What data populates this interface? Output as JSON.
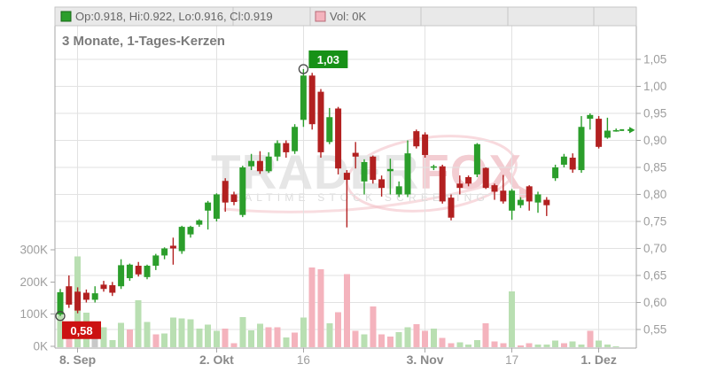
{
  "title": "3 Monate, 1-Tages-Kerzen",
  "legend": {
    "ohlc_label": "Op:0.918, Hi:0.922, Lo:0.916, Cl:0.919",
    "vol_label": "Vol: 0K"
  },
  "watermark": {
    "part1": "TRADER",
    "part2": "FOX",
    "subtitle": "REALTIME STOCK SCREENING"
  },
  "colors": {
    "candle_up": "#2b9e2b",
    "candle_down": "#b22020",
    "vol_up": "#b9dfb2",
    "vol_down": "#f4b3bd",
    "vol_neutral": "#c8c8c8",
    "ann_up_bg": "#179117",
    "ann_down_bg": "#cc1111",
    "grid": "#e2e2e2",
    "axis": "#a6a6a6",
    "legend_bg": "#e9e9e9",
    "legend_border": "#c6c6c6",
    "watermark_gray": "#e6e6e6",
    "watermark_pink": "#f3cdd2"
  },
  "chart_data": {
    "type": "candlestick_with_volume",
    "title": "3 Monate, 1-Tages-Kerzen",
    "last_price": 0.919,
    "price_axis": {
      "min": 0.55,
      "max": 1.05,
      "step": 0.05,
      "labels": [
        "1,05",
        "1,00",
        "0,95",
        "0,90",
        "0,85",
        "0,80",
        "0,75",
        "0,70",
        "0,65",
        "0,60",
        "0,55"
      ],
      "values": [
        1.05,
        1.0,
        0.95,
        0.9,
        0.85,
        0.8,
        0.75,
        0.7,
        0.65,
        0.6,
        0.55
      ]
    },
    "volume_axis": {
      "labels": [
        "300K",
        "200K",
        "100K",
        "0K"
      ],
      "values": [
        300,
        200,
        100,
        0
      ]
    },
    "x_ticks": [
      {
        "label": "8. Sep",
        "index": 2,
        "bold": true
      },
      {
        "label": "2. Okt",
        "index": 18,
        "bold": true
      },
      {
        "label": "16",
        "index": 28,
        "bold": false
      },
      {
        "label": "3. Nov",
        "index": 42,
        "bold": true
      },
      {
        "label": "17",
        "index": 52,
        "bold": false
      },
      {
        "label": "1. Dez",
        "index": 62,
        "bold": true
      }
    ],
    "annotations": [
      {
        "kind": "high",
        "index": 28,
        "text": "1,03"
      },
      {
        "kind": "low",
        "index": 0,
        "text": "0,58"
      }
    ],
    "candles_ohlcv_format": [
      "open",
      "high",
      "low",
      "close",
      "volume_K",
      "volume_color(u=green,d=pink,n=gray)"
    ],
    "candles_ohlcv": [
      [
        0.578,
        0.625,
        0.575,
        0.619,
        130,
        "u"
      ],
      [
        0.63,
        0.65,
        0.59,
        0.596,
        65,
        "d"
      ],
      [
        0.62,
        0.628,
        0.58,
        0.585,
        280,
        "u"
      ],
      [
        0.618,
        0.624,
        0.6,
        0.605,
        107,
        "u"
      ],
      [
        0.605,
        0.63,
        0.6,
        0.617,
        33,
        "n"
      ],
      [
        0.633,
        0.64,
        0.62,
        0.625,
        61,
        "u"
      ],
      [
        0.632,
        0.638,
        0.612,
        0.618,
        22,
        "u"
      ],
      [
        0.63,
        0.68,
        0.625,
        0.669,
        75,
        "u"
      ],
      [
        0.645,
        0.672,
        0.64,
        0.67,
        55,
        "d"
      ],
      [
        0.668,
        0.675,
        0.648,
        0.652,
        144,
        "u"
      ],
      [
        0.647,
        0.67,
        0.643,
        0.668,
        78,
        "u"
      ],
      [
        0.668,
        0.69,
        0.66,
        0.687,
        40,
        "d"
      ],
      [
        0.687,
        0.702,
        0.68,
        0.7,
        42,
        "u"
      ],
      [
        0.705,
        0.72,
        0.67,
        0.7,
        92,
        "u"
      ],
      [
        0.695,
        0.742,
        0.69,
        0.74,
        88,
        "u"
      ],
      [
        0.726,
        0.742,
        0.72,
        0.74,
        86,
        "u"
      ],
      [
        0.744,
        0.754,
        0.74,
        0.752,
        57,
        "u"
      ],
      [
        0.77,
        0.788,
        0.735,
        0.785,
        70,
        "u"
      ],
      [
        0.755,
        0.802,
        0.75,
        0.8,
        51,
        "u"
      ],
      [
        0.825,
        0.83,
        0.768,
        0.785,
        57,
        "d"
      ],
      [
        0.8,
        0.805,
        0.78,
        0.786,
        12,
        "d"
      ],
      [
        0.762,
        0.853,
        0.758,
        0.85,
        93,
        "u"
      ],
      [
        0.852,
        0.875,
        0.845,
        0.862,
        52,
        "u"
      ],
      [
        0.862,
        0.88,
        0.838,
        0.843,
        72,
        "u"
      ],
      [
        0.843,
        0.878,
        0.84,
        0.87,
        62,
        "d"
      ],
      [
        0.87,
        0.9,
        0.862,
        0.895,
        62,
        "d"
      ],
      [
        0.895,
        0.9,
        0.868,
        0.878,
        30,
        "u"
      ],
      [
        0.88,
        0.93,
        0.875,
        0.925,
        45,
        "d"
      ],
      [
        0.938,
        1.032,
        0.925,
        1.02,
        92,
        "u"
      ],
      [
        1.02,
        1.025,
        0.92,
        0.93,
        245,
        "d"
      ],
      [
        0.99,
        0.995,
        0.868,
        0.878,
        240,
        "d"
      ],
      [
        0.897,
        0.96,
        0.893,
        0.943,
        74,
        "u"
      ],
      [
        0.959,
        0.962,
        0.837,
        0.848,
        108,
        "d"
      ],
      [
        0.84,
        0.845,
        0.739,
        0.827,
        225,
        "d"
      ],
      [
        0.877,
        0.897,
        0.848,
        0.87,
        51,
        "d"
      ],
      [
        0.824,
        0.865,
        0.8,
        0.86,
        40,
        "u"
      ],
      [
        0.87,
        0.872,
        0.82,
        0.827,
        125,
        "d"
      ],
      [
        0.828,
        0.835,
        0.796,
        0.812,
        39,
        "d"
      ],
      [
        0.843,
        0.866,
        0.8,
        0.847,
        33,
        "d"
      ],
      [
        0.8,
        0.824,
        0.795,
        0.815,
        47,
        "u"
      ],
      [
        0.8,
        0.9,
        0.795,
        0.876,
        61,
        "u"
      ],
      [
        0.917,
        0.92,
        0.885,
        0.889,
        71,
        "d"
      ],
      [
        0.911,
        0.915,
        0.868,
        0.873,
        51,
        "d"
      ],
      [
        0.85,
        0.855,
        0.845,
        0.852,
        57,
        "u"
      ],
      [
        0.852,
        0.855,
        0.783,
        0.787,
        28,
        "d"
      ],
      [
        0.794,
        0.8,
        0.752,
        0.757,
        12,
        "d"
      ],
      [
        0.82,
        0.835,
        0.8,
        0.812,
        15,
        "u"
      ],
      [
        0.832,
        0.835,
        0.815,
        0.82,
        8,
        "u"
      ],
      [
        0.837,
        0.895,
        0.832,
        0.893,
        22,
        "u"
      ],
      [
        0.849,
        0.85,
        0.81,
        0.812,
        74,
        "d"
      ],
      [
        0.817,
        0.82,
        0.79,
        0.805,
        18,
        "d"
      ],
      [
        0.807,
        0.836,
        0.783,
        0.787,
        12,
        "d"
      ],
      [
        0.77,
        0.81,
        0.753,
        0.807,
        172,
        "u"
      ],
      [
        0.78,
        0.795,
        0.775,
        0.79,
        5,
        "d"
      ],
      [
        0.815,
        0.817,
        0.77,
        0.787,
        12,
        "d"
      ],
      [
        0.785,
        0.805,
        0.766,
        0.8,
        8,
        "u"
      ],
      [
        0.79,
        0.795,
        0.76,
        0.78,
        8,
        "u"
      ],
      [
        0.83,
        0.855,
        0.825,
        0.85,
        20,
        "u"
      ],
      [
        0.855,
        0.875,
        0.85,
        0.87,
        12,
        "d"
      ],
      [
        0.868,
        0.876,
        0.84,
        0.846,
        18,
        "u"
      ],
      [
        0.845,
        0.945,
        0.84,
        0.925,
        8,
        "u"
      ],
      [
        0.94,
        0.95,
        0.92,
        0.947,
        50,
        "d"
      ],
      [
        0.94,
        0.945,
        0.885,
        0.888,
        20,
        "u"
      ],
      [
        0.905,
        0.942,
        0.903,
        0.918,
        8,
        "u"
      ],
      [
        0.918,
        0.922,
        0.916,
        0.919,
        3,
        "u"
      ]
    ]
  }
}
